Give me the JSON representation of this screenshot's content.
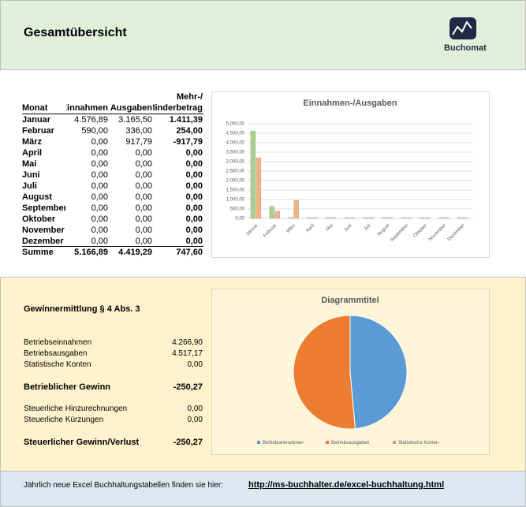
{
  "header": {
    "title": "Gesamtübersicht",
    "logo": "Buchomat"
  },
  "table": {
    "header": [
      "Monat",
      "Einnahmen",
      "Ausgaben",
      "Mehr-/\nMinderbetrag"
    ],
    "rows": [
      [
        "Januar",
        "4.576,89",
        "3.165,50",
        "1.411,39"
      ],
      [
        "Februar",
        "590,00",
        "336,00",
        "254,00"
      ],
      [
        "März",
        "0,00",
        "917,79",
        "-917,79"
      ],
      [
        "April",
        "0,00",
        "0,00",
        "0,00"
      ],
      [
        "Mai",
        "0,00",
        "0,00",
        "0,00"
      ],
      [
        "Juni",
        "0,00",
        "0,00",
        "0,00"
      ],
      [
        "Juli",
        "0,00",
        "0,00",
        "0,00"
      ],
      [
        "August",
        "0,00",
        "0,00",
        "0,00"
      ],
      [
        "September",
        "0,00",
        "0,00",
        "0,00"
      ],
      [
        "Oktober",
        "0,00",
        "0,00",
        "0,00"
      ],
      [
        "November",
        "0,00",
        "0,00",
        "0,00"
      ],
      [
        "Dezember",
        "0,00",
        "0,00",
        "0,00"
      ]
    ],
    "total": [
      "Summe",
      "5.166,89",
      "4.419,29",
      "747,60"
    ]
  },
  "profit": {
    "title": "Gewinnermittlung § 4 Abs. 3",
    "rows": [
      {
        "label": "Betriebseinnahmen",
        "value": "4.266,90"
      },
      {
        "label": "Betriebsausgaben",
        "value": "4.517,17"
      },
      {
        "label": "Statistische Konten",
        "value": "0,00"
      },
      {
        "label": "Betrieblicher Gewinn",
        "value": "-250,27",
        "bold": true
      },
      {
        "label": "Steuerliche Hinzurechnungen",
        "value": "0,00"
      },
      {
        "label": "Steuerliche Kürzungen",
        "value": "0,00"
      },
      {
        "label": "Steuerlicher Gewinn/Verlust",
        "value": "-250,27",
        "bold": true
      }
    ]
  },
  "footer": {
    "text": "Jährlich neue Excel Buchhaltungstabellen finden sie hier:",
    "link": "http://ms-buchhalter.de/excel-buchhaltung.html"
  },
  "chart_data": [
    {
      "type": "bar",
      "title": "Einnahmen-/Ausgaben",
      "categories": [
        "Januar",
        "Februar",
        "März",
        "April",
        "Mai",
        "Juni",
        "Juli",
        "August",
        "September",
        "Oktober",
        "November",
        "Dezember"
      ],
      "series": [
        {
          "color": "#a9d18e",
          "values": [
            4576.89,
            590,
            0,
            0,
            0,
            0,
            0,
            0,
            0,
            0,
            0,
            0
          ]
        },
        {
          "color": "#f4b183",
          "values": [
            3165.5,
            336,
            917.79,
            0,
            0,
            0,
            0,
            0,
            0,
            0,
            0,
            0
          ]
        }
      ],
      "ylim": [
        0,
        5000
      ],
      "yticks": [
        {
          "value": 0,
          "label": "0,00"
        },
        {
          "value": 500,
          "label": "500,00"
        },
        {
          "value": 1000,
          "label": "1.000,00"
        },
        {
          "value": 1500,
          "label": "1.500,00"
        },
        {
          "value": 2000,
          "label": "2.000,00"
        },
        {
          "value": 2500,
          "label": "2.500,00"
        },
        {
          "value": 3000,
          "label": "3.000,00"
        },
        {
          "value": 3500,
          "label": "3.500,00"
        },
        {
          "value": 4000,
          "label": "4.000,00"
        },
        {
          "value": 4500,
          "label": "4.500,00"
        },
        {
          "value": 5000,
          "label": "5.000,00"
        }
      ],
      "grid": true
    },
    {
      "type": "pie",
      "title": "Diagrammtitel",
      "categories": [
        "Betriebseinnahmen",
        "Betriebsausgaben",
        "Statistische Konten"
      ],
      "values": [
        4266.9,
        4517.17,
        0
      ],
      "colors": [
        "#5b9bd5",
        "#ed7d31",
        "#a5a5a5"
      ],
      "legend": "bottom"
    }
  ]
}
